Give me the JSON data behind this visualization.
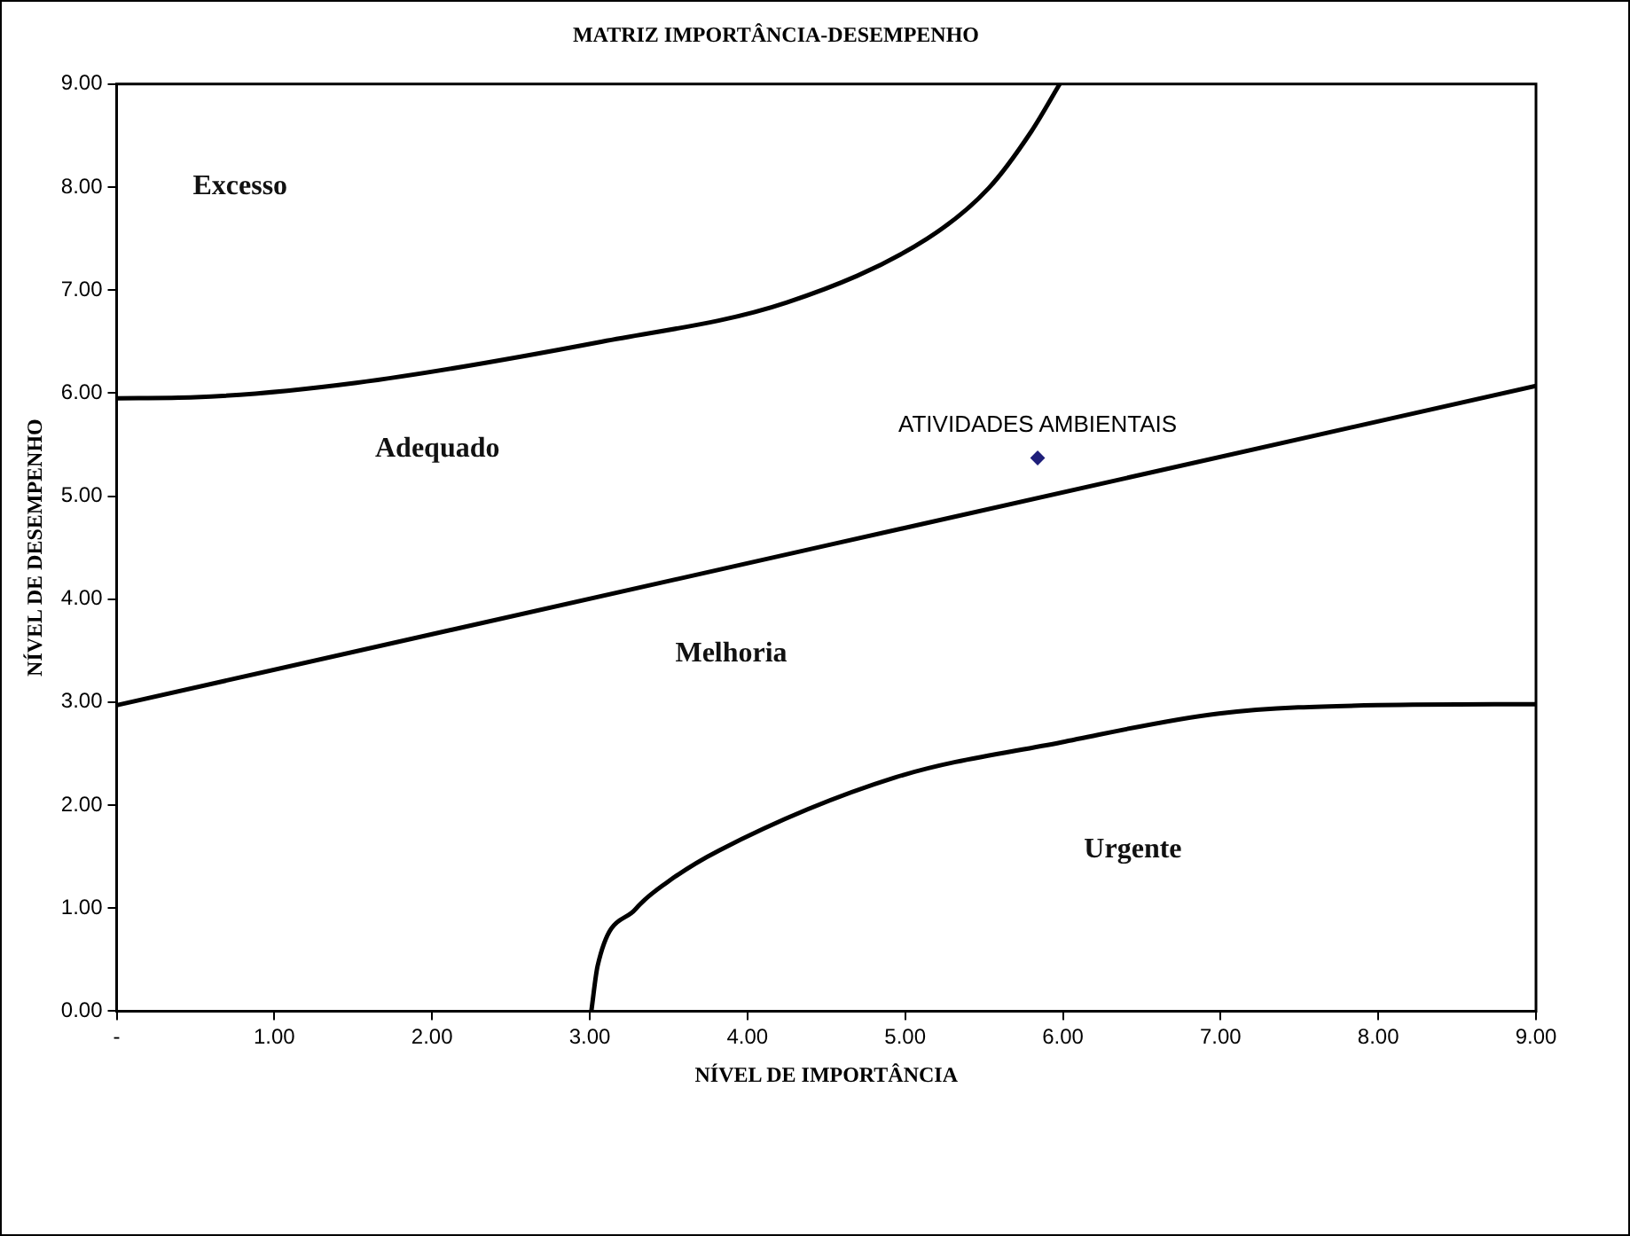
{
  "chart_data": {
    "type": "scatter",
    "title": "MATRIZ IMPORTÂNCIA-DESEMPENHO",
    "xlabel": "NÍVEL DE IMPORTÂNCIA",
    "ylabel": "NÍVEL DE DESEMPENHO",
    "xlim": [
      0,
      9
    ],
    "ylim": [
      0,
      9
    ],
    "xticks": [
      {
        "value": 0,
        "label": "-"
      },
      {
        "value": 1,
        "label": "1.00"
      },
      {
        "value": 2,
        "label": "2.00"
      },
      {
        "value": 3,
        "label": "3.00"
      },
      {
        "value": 4,
        "label": "4.00"
      },
      {
        "value": 5,
        "label": "5.00"
      },
      {
        "value": 6,
        "label": "6.00"
      },
      {
        "value": 7,
        "label": "7.00"
      },
      {
        "value": 8,
        "label": "8.00"
      },
      {
        "value": 9,
        "label": "9.00"
      }
    ],
    "yticks": [
      {
        "value": 0,
        "label": "0.00"
      },
      {
        "value": 1,
        "label": "1.00"
      },
      {
        "value": 2,
        "label": "2.00"
      },
      {
        "value": 3,
        "label": "3.00"
      },
      {
        "value": 4,
        "label": "4.00"
      },
      {
        "value": 5,
        "label": "5.00"
      },
      {
        "value": 6,
        "label": "6.00"
      },
      {
        "value": 7,
        "label": "7.00"
      },
      {
        "value": 8,
        "label": "8.00"
      },
      {
        "value": 9,
        "label": "9.00"
      }
    ],
    "grid": false,
    "legend": false,
    "line_style": "solid",
    "series": [
      {
        "type": "line",
        "color": "#000000",
        "marker": "none",
        "x": [
          0,
          0.5,
          1.52,
          3.08,
          4.25,
          5.14,
          5.53,
          5.8,
          5.98
        ],
        "values": [
          5.95,
          5.96,
          6.1,
          6.5,
          6.88,
          7.5,
          7.99,
          8.54,
          9
        ]
      },
      {
        "type": "line",
        "color": "#000000",
        "marker": "none",
        "x": [
          0,
          9
        ],
        "values": [
          2.97,
          6.07
        ]
      },
      {
        "type": "line",
        "color": "#000000",
        "marker": "none",
        "x": [
          3.01,
          3.05,
          3.29,
          3.49,
          3.82,
          4.94,
          5.99,
          6.99,
          8,
          9
        ],
        "values": [
          0,
          0.44,
          0.99,
          1.25,
          1.56,
          2.27,
          2.61,
          2.89,
          2.97,
          2.98
        ]
      },
      {
        "type": "scatter",
        "name": "ATIVIDADES AMBIENTAIS",
        "color": "#1f1f7a",
        "marker": "diamond",
        "x": [
          5.84
        ],
        "values": [
          5.37
        ]
      }
    ],
    "annotations": [
      "Excesso",
      "Adequado",
      "Melhoria",
      "Urgente"
    ]
  }
}
